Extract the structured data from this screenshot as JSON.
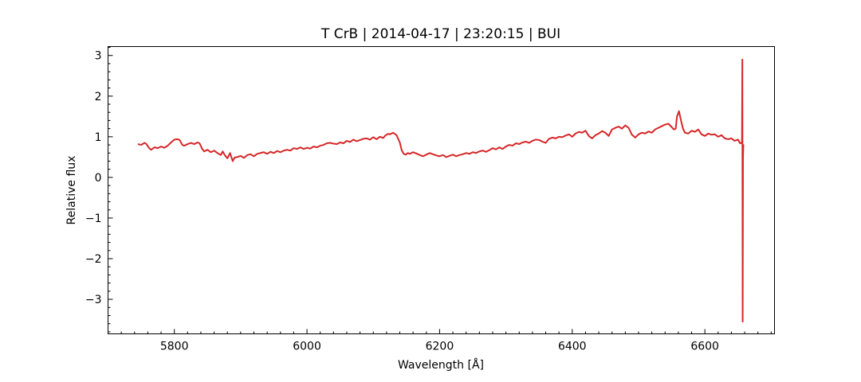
{
  "chart_data": {
    "type": "line",
    "title": "T CrB | 2014-04-17 | 23:20:15 | BUI",
    "xlabel": "Wavelength [Å]",
    "ylabel": "Relative flux",
    "xlim": [
      5700,
      6705
    ],
    "ylim": [
      -3.85,
      3.22
    ],
    "xticks": [
      5800,
      6000,
      6200,
      6400,
      6600
    ],
    "yticks": [
      -3,
      -2,
      -1,
      0,
      1,
      2,
      3
    ],
    "xtick_labels": [
      "5800",
      "6000",
      "6200",
      "6400",
      "6600"
    ],
    "ytick_labels": [
      "−3",
      "−2",
      "−1",
      "0",
      "1",
      "2",
      "3"
    ],
    "grid": false,
    "legend": "none",
    "series": [
      {
        "color": "#d62728",
        "x": [
          5745,
          5750,
          5755,
          5758,
          5762,
          5765,
          5770,
          5775,
          5780,
          5785,
          5790,
          5795,
          5800,
          5805,
          5808,
          5812,
          5815,
          5820,
          5825,
          5830,
          5835,
          5838,
          5842,
          5845,
          5850,
          5855,
          5860,
          5865,
          5870,
          5873,
          5876,
          5880,
          5884,
          5888,
          5891,
          5895,
          5900,
          5905,
          5910,
          5915,
          5920,
          5925,
          5930,
          5935,
          5940,
          5945,
          5950,
          5955,
          5960,
          5965,
          5970,
          5975,
          5980,
          5985,
          5990,
          5995,
          6000,
          6005,
          6010,
          6015,
          6020,
          6025,
          6030,
          6035,
          6040,
          6045,
          6050,
          6055,
          6060,
          6065,
          6070,
          6075,
          6080,
          6085,
          6090,
          6095,
          6100,
          6105,
          6110,
          6115,
          6118,
          6122,
          6125,
          6130,
          6135,
          6140,
          6143,
          6146,
          6149,
          6152,
          6155,
          6160,
          6165,
          6170,
          6175,
          6180,
          6185,
          6190,
          6195,
          6200,
          6205,
          6210,
          6215,
          6220,
          6225,
          6230,
          6235,
          6240,
          6245,
          6250,
          6255,
          6260,
          6265,
          6270,
          6275,
          6280,
          6285,
          6290,
          6295,
          6300,
          6305,
          6310,
          6315,
          6320,
          6325,
          6330,
          6335,
          6340,
          6345,
          6350,
          6355,
          6360,
          6365,
          6370,
          6375,
          6380,
          6385,
          6390,
          6395,
          6400,
          6405,
          6410,
          6415,
          6420,
          6425,
          6430,
          6435,
          6440,
          6445,
          6450,
          6455,
          6460,
          6465,
          6470,
          6475,
          6480,
          6485,
          6490,
          6495,
          6500,
          6505,
          6510,
          6515,
          6520,
          6525,
          6530,
          6535,
          6540,
          6545,
          6550,
          6553,
          6556,
          6558,
          6561,
          6564,
          6567,
          6570,
          6575,
          6580,
          6585,
          6590,
          6595,
          6600,
          6605,
          6610,
          6615,
          6620,
          6625,
          6630,
          6635,
          6640,
          6645,
          6650,
          6653,
          6655,
          6656,
          6656.5,
          6657,
          6657.5,
          6658,
          6658.5
        ],
        "y": [
          0.82,
          0.8,
          0.85,
          0.82,
          0.72,
          0.68,
          0.74,
          0.72,
          0.76,
          0.73,
          0.78,
          0.86,
          0.93,
          0.94,
          0.92,
          0.8,
          0.78,
          0.82,
          0.85,
          0.82,
          0.86,
          0.84,
          0.7,
          0.64,
          0.68,
          0.62,
          0.66,
          0.6,
          0.55,
          0.64,
          0.55,
          0.47,
          0.6,
          0.4,
          0.49,
          0.5,
          0.53,
          0.48,
          0.55,
          0.57,
          0.52,
          0.58,
          0.6,
          0.62,
          0.58,
          0.63,
          0.6,
          0.65,
          0.62,
          0.66,
          0.68,
          0.66,
          0.72,
          0.7,
          0.74,
          0.7,
          0.73,
          0.71,
          0.76,
          0.74,
          0.78,
          0.8,
          0.84,
          0.85,
          0.83,
          0.82,
          0.86,
          0.84,
          0.9,
          0.87,
          0.93,
          0.89,
          0.92,
          0.95,
          0.96,
          0.93,
          0.99,
          0.94,
          1.0,
          0.97,
          1.03,
          1.07,
          1.06,
          1.1,
          1.04,
          0.86,
          0.66,
          0.58,
          0.56,
          0.6,
          0.58,
          0.62,
          0.59,
          0.55,
          0.52,
          0.56,
          0.6,
          0.57,
          0.54,
          0.52,
          0.55,
          0.5,
          0.53,
          0.56,
          0.52,
          0.55,
          0.57,
          0.6,
          0.58,
          0.62,
          0.6,
          0.64,
          0.66,
          0.63,
          0.67,
          0.72,
          0.69,
          0.74,
          0.7,
          0.76,
          0.8,
          0.78,
          0.84,
          0.82,
          0.86,
          0.88,
          0.85,
          0.9,
          0.93,
          0.92,
          0.88,
          0.85,
          0.95,
          0.98,
          0.96,
          1.0,
          0.99,
          1.03,
          1.06,
          1.0,
          1.08,
          1.12,
          1.1,
          1.15,
          1.02,
          0.96,
          1.04,
          1.08,
          1.14,
          1.1,
          1.02,
          1.18,
          1.22,
          1.25,
          1.2,
          1.28,
          1.22,
          1.05,
          0.98,
          1.06,
          1.1,
          1.08,
          1.13,
          1.1,
          1.18,
          1.22,
          1.26,
          1.3,
          1.32,
          1.24,
          1.18,
          1.2,
          1.5,
          1.63,
          1.4,
          1.2,
          1.1,
          1.08,
          1.15,
          1.12,
          1.18,
          1.06,
          1.02,
          1.08,
          1.05,
          1.06,
          1.0,
          1.04,
          0.96,
          0.94,
          0.96,
          0.9,
          0.93,
          0.84,
          0.85,
          0.84,
          2.9,
          -3.55,
          0.5,
          0.8,
          0.78
        ]
      }
    ]
  }
}
